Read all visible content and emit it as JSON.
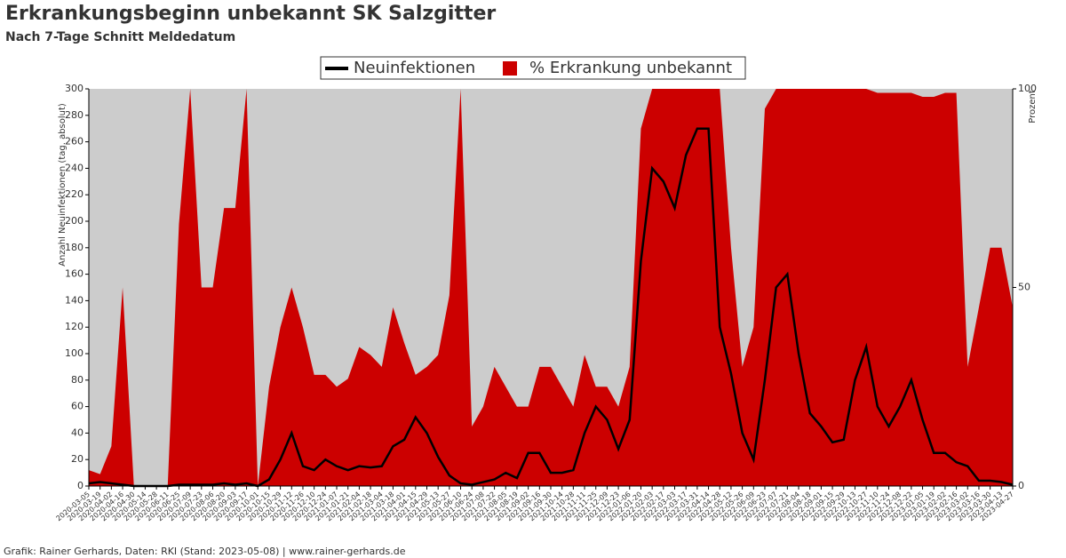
{
  "chart_data": {
    "type": "line-area",
    "title": "Erkrankungsbeginn unbekannt SK Salzgitter",
    "subtitle": "Nach 7-Tage Schnitt Meldedatum",
    "ylabel": "Anzahl Neuinfektionen (tag. absolut)",
    "y2label": "Prozent",
    "footer": "Grafik: Rainer Gerhards, Daten: RKI (Stand: 2023-05-08) | www.rainer-gerhards.de",
    "legend": "top",
    "categories": [
      "2020-03-05",
      "2020-03-19",
      "2020-04-02",
      "2020-04-16",
      "2020-04-30",
      "2020-05-14",
      "2020-05-28",
      "2020-06-11",
      "2020-06-25",
      "2020-07-09",
      "2020-07-23",
      "2020-08-06",
      "2020-08-20",
      "2020-09-03",
      "2020-09-17",
      "2020-10-01",
      "2020-10-15",
      "2020-10-29",
      "2020-11-12",
      "2020-11-26",
      "2020-12-10",
      "2020-12-24",
      "2021-01-07",
      "2021-01-21",
      "2021-02-04",
      "2021-02-18",
      "2021-03-04",
      "2021-03-18",
      "2021-04-01",
      "2021-04-15",
      "2021-04-29",
      "2021-05-13",
      "2021-05-27",
      "2021-06-10",
      "2021-06-24",
      "2021-07-08",
      "2021-07-22",
      "2021-08-05",
      "2021-08-19",
      "2021-09-02",
      "2021-09-16",
      "2021-09-30",
      "2021-10-14",
      "2021-10-28",
      "2021-11-11",
      "2021-11-25",
      "2021-12-09",
      "2021-12-23",
      "2022-01-06",
      "2022-01-20",
      "2022-02-03",
      "2022-02-17",
      "2022-03-03",
      "2022-03-17",
      "2022-03-31",
      "2022-04-14",
      "2022-04-28",
      "2022-05-12",
      "2022-05-26",
      "2022-06-09",
      "2022-06-23",
      "2022-07-07",
      "2022-07-21",
      "2022-08-04",
      "2022-08-18",
      "2022-09-01",
      "2022-09-15",
      "2022-09-29",
      "2022-10-13",
      "2022-10-27",
      "2022-11-10",
      "2022-11-24",
      "2022-12-08",
      "2022-12-22",
      "2023-01-05",
      "2023-01-19",
      "2023-02-02",
      "2023-02-16",
      "2023-03-02",
      "2023-03-16",
      "2023-03-30",
      "2023-04-13",
      "2023-04-27"
    ],
    "series": [
      {
        "name": "% Erkrankung unbekannt",
        "color": "#cc0000",
        "axis": "y2",
        "values": [
          4,
          3,
          10,
          50,
          0,
          0,
          0,
          0,
          66,
          100,
          50,
          50,
          70,
          70,
          100,
          0,
          25,
          40,
          50,
          40,
          28,
          28,
          25,
          27,
          35,
          33,
          30,
          45,
          36,
          28,
          30,
          33,
          48,
          100,
          15,
          20,
          30,
          25,
          20,
          20,
          30,
          30,
          25,
          20,
          33,
          25,
          25,
          20,
          30,
          90,
          100,
          100,
          100,
          100,
          100,
          100,
          100,
          60,
          30,
          40,
          95,
          100,
          100,
          100,
          100,
          100,
          100,
          100,
          100,
          100,
          99,
          99,
          99,
          99,
          98,
          98,
          99,
          99,
          30,
          45,
          60,
          60,
          45
        ]
      },
      {
        "name": "Neuinfektionen",
        "color": "#000000",
        "values": [
          2,
          3,
          2,
          1,
          0,
          0,
          0,
          0,
          1,
          1,
          1,
          1,
          2,
          1,
          2,
          0,
          5,
          20,
          40,
          15,
          12,
          20,
          15,
          12,
          15,
          14,
          15,
          30,
          35,
          52,
          40,
          22,
          8,
          2,
          1,
          3,
          5,
          10,
          6,
          25,
          25,
          10,
          10,
          12,
          40,
          60,
          50,
          28,
          50,
          170,
          240,
          230,
          210,
          250,
          270,
          270,
          120,
          85,
          40,
          20,
          80,
          150,
          160,
          100,
          55,
          45,
          33,
          35,
          80,
          105,
          60,
          45,
          60,
          80,
          50,
          25,
          25,
          18,
          15,
          4,
          4,
          3,
          1
        ]
      }
    ],
    "ylim": [
      0,
      300
    ],
    "yticks": [
      0,
      20,
      40,
      60,
      80,
      100,
      120,
      140,
      160,
      180,
      200,
      220,
      240,
      260,
      280,
      300
    ],
    "y2lim": [
      0,
      100
    ],
    "y2ticks": [
      0,
      50,
      100
    ]
  }
}
